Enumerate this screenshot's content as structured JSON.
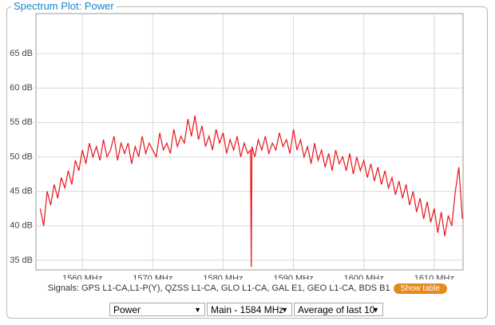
{
  "panel_title": "Spectrum Plot: Power",
  "chart_data": {
    "type": "line",
    "color": "#e8141b",
    "grid": true,
    "xlim": [
      1553.4,
      1614.1
    ],
    "xticks": [
      {
        "value": 1560,
        "label": "1560 MHz"
      },
      {
        "value": 1570,
        "label": "1570 MHz"
      },
      {
        "value": 1580,
        "label": "1580 MHz"
      },
      {
        "value": 1590,
        "label": "1590 MHz"
      },
      {
        "value": 1600,
        "label": "1600 MHz"
      },
      {
        "value": 1610,
        "label": "1610 MHz"
      }
    ],
    "ylim": [
      33.6,
      70.8
    ],
    "yticks": [
      {
        "value": 35,
        "label": "35 dB"
      },
      {
        "value": 40,
        "label": "40 dB"
      },
      {
        "value": 45,
        "label": "45 dB"
      },
      {
        "value": 50,
        "label": "50 dB"
      },
      {
        "value": 55,
        "label": "55 dB"
      },
      {
        "value": 60,
        "label": "60 dB"
      },
      {
        "value": 65,
        "label": "65 dB"
      }
    ],
    "x": [
      1554,
      1554.5,
      1555,
      1555.5,
      1556,
      1556.5,
      1557,
      1557.5,
      1558,
      1558.5,
      1559,
      1559.5,
      1560,
      1560.5,
      1561,
      1561.5,
      1562,
      1562.5,
      1563,
      1563.5,
      1564,
      1564.5,
      1565,
      1565.5,
      1566,
      1566.5,
      1567,
      1567.5,
      1568,
      1568.5,
      1569,
      1569.5,
      1570,
      1570.5,
      1571,
      1571.5,
      1572,
      1572.5,
      1573,
      1573.5,
      1574,
      1574.5,
      1575,
      1575.5,
      1576,
      1576.5,
      1577,
      1577.5,
      1578,
      1578.5,
      1579,
      1579.5,
      1580,
      1580.5,
      1581,
      1581.5,
      1582,
      1582.5,
      1583,
      1583.5,
      1583.9,
      1584,
      1584.1,
      1584.5,
      1585,
      1585.5,
      1586,
      1586.5,
      1587,
      1587.5,
      1588,
      1588.5,
      1589,
      1589.5,
      1590,
      1590.5,
      1591,
      1591.5,
      1592,
      1592.5,
      1593,
      1593.5,
      1594,
      1594.5,
      1595,
      1595.5,
      1596,
      1596.5,
      1597,
      1597.5,
      1598,
      1598.5,
      1599,
      1599.5,
      1600,
      1600.5,
      1601,
      1601.5,
      1602,
      1602.5,
      1603,
      1603.5,
      1604,
      1604.5,
      1605,
      1605.5,
      1606,
      1606.5,
      1607,
      1607.5,
      1608,
      1608.5,
      1609,
      1609.5,
      1610,
      1610.5,
      1611,
      1611.5,
      1612,
      1612.5,
      1613,
      1613.5,
      1614
    ],
    "values": [
      42.5,
      40,
      45,
      43,
      46,
      44,
      47,
      45.5,
      48,
      46,
      49.5,
      48,
      51,
      49,
      52,
      50,
      51.5,
      49.5,
      52.5,
      50,
      51,
      53,
      49.5,
      52,
      50.5,
      52,
      49,
      51.5,
      50,
      53,
      50.5,
      52,
      51,
      50,
      53.5,
      51,
      52,
      50.5,
      54,
      51.5,
      53,
      52,
      55.5,
      53,
      56,
      52.5,
      54.5,
      51.5,
      53,
      51,
      54,
      52,
      53.5,
      50.5,
      52.5,
      51,
      53,
      50,
      52,
      50.5,
      51,
      34,
      51.5,
      50,
      52.5,
      51,
      53,
      50.5,
      52,
      51,
      53.5,
      51.5,
      52.5,
      50.5,
      54,
      51,
      52.5,
      50,
      51.5,
      49,
      52,
      49.5,
      51,
      48.5,
      50.5,
      48,
      51,
      49,
      50,
      48,
      50.5,
      47.5,
      50,
      48,
      49.5,
      47,
      49,
      46.5,
      48.5,
      46,
      48,
      45.5,
      47,
      44.5,
      46.5,
      44,
      46,
      43,
      45,
      42,
      44,
      41,
      43.5,
      40.5,
      42.5,
      39,
      42,
      38.5,
      41.5,
      40,
      45,
      48.5,
      41
    ]
  },
  "signals": "Signals: GPS L1-CA,L1-P(Y), QZSS L1-CA, GLO L1-CA, GAL E1, GEO L1-CA, BDS B1",
  "show_table": "Show table",
  "selects": [
    "Power",
    "Main - 1584 MHz",
    "Average of last 10"
  ]
}
